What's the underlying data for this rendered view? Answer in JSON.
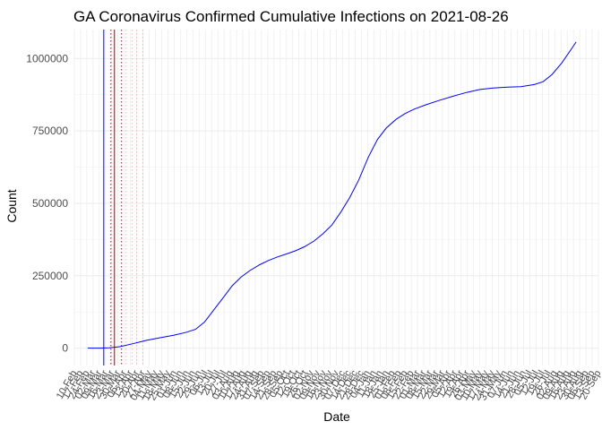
{
  "chart_data": {
    "type": "line",
    "title": "GA Coronavirus Confirmed Cumulative Infections on 2021-08-26",
    "xlabel": "Date",
    "ylabel": "Count",
    "x_range": [
      "2020-02-10",
      "2021-09-20"
    ],
    "ylim": [
      -60000,
      1100000
    ],
    "yticks": [
      0,
      250000,
      500000,
      750000,
      1000000
    ],
    "ytick_labels": [
      "0",
      "250000",
      "500000",
      "750000",
      "1000000"
    ],
    "grid": true,
    "xtick_labels": [
      "10-Feb",
      "17-Feb",
      "24-Feb",
      "02-Mar",
      "09-Mar",
      "16-Mar",
      "23-Mar",
      "30-Mar",
      "06-Apr",
      "13-Apr",
      "20-Apr",
      "27-Apr",
      "04-May",
      "11-May",
      "18-May",
      "25-May",
      "01-Jun",
      "08-Jun",
      "15-Jun",
      "22-Jun",
      "29-Jun",
      "06-Jul",
      "13-Jul",
      "20-Jul",
      "27-Jul",
      "03-Aug",
      "10-Aug",
      "17-Aug",
      "24-Aug",
      "31-Aug",
      "07-Sep",
      "14-Sep",
      "21-Sep",
      "28-Sep",
      "05-Oct",
      "12-Oct",
      "19-Oct",
      "26-Oct",
      "02-Nov",
      "09-Nov",
      "16-Nov",
      "23-Nov",
      "30-Nov",
      "07-Dec",
      "14-Dec",
      "21-Dec",
      "28-Dec",
      "04-Jan",
      "11-Jan",
      "18-Jan",
      "25-Jan",
      "01-Feb",
      "08-Feb",
      "15-Feb",
      "22-Feb",
      "01-Mar",
      "08-Mar",
      "15-Mar",
      "22-Mar",
      "29-Mar",
      "05-Apr",
      "12-Apr",
      "19-Apr",
      "26-Apr",
      "03-May",
      "10-May",
      "17-May",
      "24-May",
      "31-May",
      "07-Jun",
      "14-Jun",
      "21-Jun",
      "28-Jun",
      "05-Jul",
      "12-Jul",
      "19-Jul",
      "26-Jul",
      "02-Aug",
      "09-Aug",
      "16-Aug",
      "23-Aug",
      "30-Aug",
      "06-Sep",
      "13-Sep",
      "20-Sep"
    ],
    "series": [
      {
        "color": "#0000ff",
        "points": [
          [
            "2020-02-25",
            0
          ],
          [
            "2020-03-10",
            0
          ],
          [
            "2020-03-20",
            1000
          ],
          [
            "2020-04-01",
            5000
          ],
          [
            "2020-04-15",
            15000
          ],
          [
            "2020-05-01",
            27000
          ],
          [
            "2020-05-15",
            35000
          ],
          [
            "2020-06-01",
            45000
          ],
          [
            "2020-06-15",
            55000
          ],
          [
            "2020-06-25",
            65000
          ],
          [
            "2020-07-05",
            90000
          ],
          [
            "2020-07-15",
            130000
          ],
          [
            "2020-07-25",
            170000
          ],
          [
            "2020-08-05",
            215000
          ],
          [
            "2020-08-15",
            245000
          ],
          [
            "2020-08-25",
            268000
          ],
          [
            "2020-09-05",
            288000
          ],
          [
            "2020-09-15",
            303000
          ],
          [
            "2020-09-25",
            315000
          ],
          [
            "2020-10-05",
            325000
          ],
          [
            "2020-10-15",
            336000
          ],
          [
            "2020-10-25",
            350000
          ],
          [
            "2020-11-05",
            370000
          ],
          [
            "2020-11-15",
            395000
          ],
          [
            "2020-11-25",
            425000
          ],
          [
            "2020-12-05",
            470000
          ],
          [
            "2020-12-15",
            520000
          ],
          [
            "2020-12-25",
            580000
          ],
          [
            "2021-01-05",
            660000
          ],
          [
            "2021-01-15",
            720000
          ],
          [
            "2021-01-25",
            760000
          ],
          [
            "2021-02-05",
            790000
          ],
          [
            "2021-02-15",
            810000
          ],
          [
            "2021-02-25",
            825000
          ],
          [
            "2021-03-10",
            840000
          ],
          [
            "2021-03-25",
            855000
          ],
          [
            "2021-04-10",
            870000
          ],
          [
            "2021-04-25",
            883000
          ],
          [
            "2021-05-10",
            893000
          ],
          [
            "2021-05-25",
            898000
          ],
          [
            "2021-06-10",
            901000
          ],
          [
            "2021-06-25",
            903000
          ],
          [
            "2021-07-10",
            910000
          ],
          [
            "2021-07-20",
            920000
          ],
          [
            "2021-07-30",
            945000
          ],
          [
            "2021-08-10",
            985000
          ],
          [
            "2021-08-20",
            1030000
          ],
          [
            "2021-08-26",
            1057000
          ]
        ]
      }
    ],
    "vlines": [
      {
        "x": "2020-03-14",
        "color": "#0000ff",
        "style": "solid"
      },
      {
        "x": "2020-03-22",
        "color": "#cc0000",
        "style": "dotted"
      },
      {
        "x": "2020-03-26",
        "color": "#aa0000",
        "style": "solid"
      },
      {
        "x": "2020-04-03",
        "color": "#cc0000",
        "style": "dotted"
      },
      {
        "x": "2020-04-08",
        "color": "#ffb0b0",
        "style": "dotted"
      },
      {
        "x": "2020-04-15",
        "color": "#ffb0b0",
        "style": "dotted"
      },
      {
        "x": "2020-04-20",
        "color": "#ffb0b0",
        "style": "dotted"
      },
      {
        "x": "2020-04-27",
        "color": "#ffb0b0",
        "style": "dotted"
      }
    ]
  }
}
